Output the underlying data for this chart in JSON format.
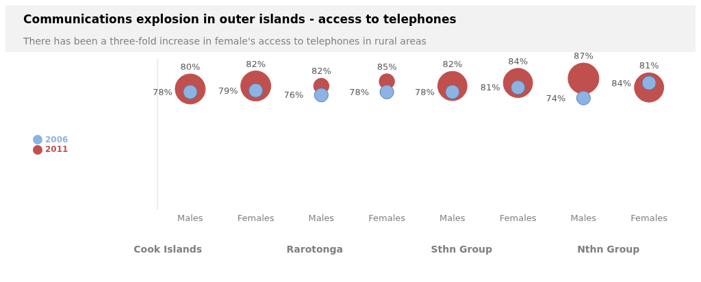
{
  "chart_data": {
    "type": "bubble",
    "title": "Communications explosion in outer islands - access to telephones",
    "subtitle": "There has been a three-fold increase in female's access to telephones in rural areas",
    "categories": [
      "Males",
      "Females",
      "Males",
      "Females",
      "Males",
      "Females",
      "Males",
      "Females"
    ],
    "annotations": [
      "Cook Islands",
      "Rarotonga",
      "Sthn Group",
      "Nthn Group"
    ],
    "ylim": [
      0,
      100
    ],
    "tick_labels": "x",
    "grid": false,
    "legend": "left",
    "series": [
      {
        "name": "2011",
        "color": "#c0504d",
        "values": [
          80,
          82,
          82,
          85,
          82,
          84,
          87,
          81
        ],
        "sizes": [
          0.95,
          0.95,
          0.25,
          0.25,
          0.9,
          0.9,
          1,
          0.9
        ],
        "value_labels": [
          "80%",
          "82%",
          "82%",
          "85%",
          "82%",
          "84%",
          "87%",
          "81%"
        ]
      },
      {
        "name": "2006",
        "color": "#8db3e2",
        "values": [
          78,
          79,
          76,
          78,
          78,
          81,
          74,
          84
        ],
        "sizes": [
          0.2,
          0.2,
          0.2,
          0.2,
          0.2,
          0.2,
          0.2,
          0.2
        ],
        "value_labels": [
          "78%",
          "79%",
          "76%",
          "78%",
          "78%",
          "81%",
          "74%",
          "84%"
        ]
      }
    ]
  }
}
